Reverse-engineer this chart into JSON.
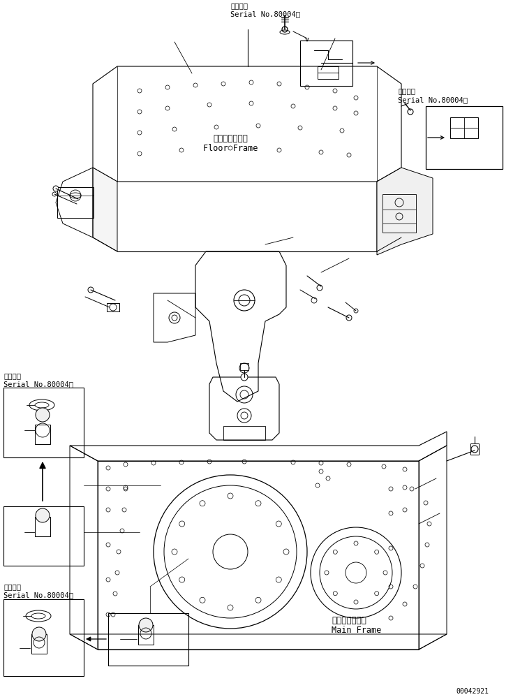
{
  "background_color": "#ffffff",
  "part_number": "00042921",
  "label_floor_frame_jp": "フロアフレーム",
  "label_floor_frame_en": "Floor Frame",
  "label_main_frame_jp": "メインフレーム",
  "label_main_frame_en": "Main Frame",
  "serial_label_jp": "適用号機",
  "serial_label_en": "Serial No.80004～",
  "figsize": [
    7.45,
    9.98
  ],
  "dpi": 100
}
